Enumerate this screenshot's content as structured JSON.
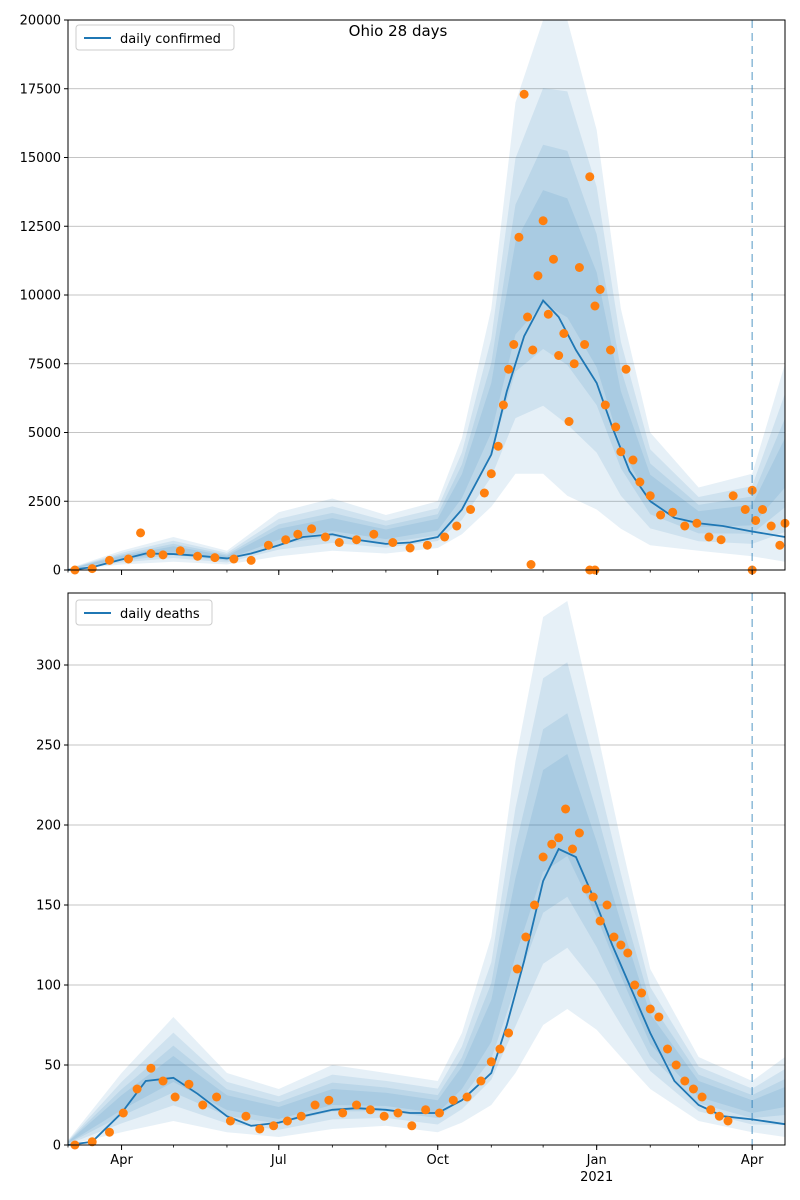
{
  "title": "Ohio 28 days",
  "colors": {
    "line": "#1f77b4",
    "dots": "#ff7f0e",
    "band": "#1f77b4",
    "grid": "#b0b0b0",
    "axis": "#000000",
    "forecast_line": "#1f77b4"
  },
  "x_axis": {
    "start": "2020-03-01",
    "end": "2021-04-20",
    "forecast_date": "2021-04-01",
    "ticks": [
      {
        "date": "2020-04-01",
        "label": "Apr"
      },
      {
        "date": "2020-07-01",
        "label": "Jul"
      },
      {
        "date": "2020-10-01",
        "label": "Oct"
      },
      {
        "date": "2021-01-01",
        "label": "Jan"
      },
      {
        "date": "2021-04-01",
        "label": "Apr"
      }
    ],
    "year_label": "2021"
  },
  "chart_data": [
    {
      "type": "line",
      "title": "Ohio 28 days",
      "ylim": [
        0,
        20000
      ],
      "yticks": [
        0,
        2500,
        5000,
        7500,
        10000,
        12500,
        15000,
        17500,
        20000
      ],
      "legend": "top-left",
      "series": [
        {
          "name": "daily confirmed",
          "kind": "line",
          "x": [
            "2020-03-01",
            "2020-03-15",
            "2020-04-01",
            "2020-04-15",
            "2020-05-01",
            "2020-05-15",
            "2020-06-01",
            "2020-06-15",
            "2020-07-01",
            "2020-07-15",
            "2020-08-01",
            "2020-08-15",
            "2020-09-01",
            "2020-09-15",
            "2020-10-01",
            "2020-10-15",
            "2020-11-01",
            "2020-11-10",
            "2020-11-20",
            "2020-12-01",
            "2020-12-10",
            "2020-12-20",
            "2021-01-01",
            "2021-01-10",
            "2021-01-20",
            "2021-02-01",
            "2021-02-15",
            "2021-03-01",
            "2021-03-15",
            "2021-04-01",
            "2021-04-20"
          ],
          "y": [
            0,
            100,
            380,
            600,
            580,
            520,
            420,
            600,
            900,
            1200,
            1300,
            1100,
            950,
            1000,
            1200,
            2200,
            4200,
            6500,
            8500,
            9800,
            9200,
            8000,
            6800,
            5200,
            3600,
            2500,
            1900,
            1700,
            1600,
            1400,
            1200
          ]
        },
        {
          "name": "",
          "kind": "band",
          "x": [
            "2020-03-01",
            "2020-04-01",
            "2020-05-01",
            "2020-06-01",
            "2020-07-01",
            "2020-08-01",
            "2020-09-01",
            "2020-10-01",
            "2020-10-15",
            "2020-11-01",
            "2020-11-15",
            "2020-12-01",
            "2020-12-15",
            "2021-01-01",
            "2021-01-15",
            "2021-02-01",
            "2021-03-01",
            "2021-04-01",
            "2021-04-20"
          ],
          "lower": [
            0,
            200,
            300,
            200,
            500,
            700,
            600,
            800,
            1300,
            2300,
            3500,
            3500,
            2700,
            2200,
            1500,
            900,
            700,
            500,
            300
          ],
          "upper": [
            50,
            700,
            1200,
            700,
            2100,
            2600,
            2000,
            2500,
            4800,
            9500,
            17000,
            20000,
            20000,
            16000,
            9500,
            5000,
            3000,
            3500,
            7500
          ]
        },
        {
          "name": "",
          "kind": "points",
          "x": [
            "2020-03-05",
            "2020-03-15",
            "2020-03-25",
            "2020-04-05",
            "2020-04-12",
            "2020-04-18",
            "2020-04-25",
            "2020-05-05",
            "2020-05-15",
            "2020-05-25",
            "2020-06-05",
            "2020-06-15",
            "2020-06-25",
            "2020-07-05",
            "2020-07-12",
            "2020-07-20",
            "2020-07-28",
            "2020-08-05",
            "2020-08-15",
            "2020-08-25",
            "2020-09-05",
            "2020-09-15",
            "2020-09-25",
            "2020-10-05",
            "2020-10-12",
            "2020-10-20",
            "2020-10-28",
            "2020-11-01",
            "2020-11-05",
            "2020-11-08",
            "2020-11-11",
            "2020-11-14",
            "2020-11-17",
            "2020-11-20",
            "2020-11-22",
            "2020-11-25",
            "2020-11-28",
            "2020-12-01",
            "2020-12-04",
            "2020-12-07",
            "2020-12-10",
            "2020-12-13",
            "2020-12-16",
            "2020-12-19",
            "2020-12-22",
            "2020-12-25",
            "2020-12-28",
            "2020-12-31",
            "2021-01-03",
            "2021-01-06",
            "2021-01-09",
            "2021-01-12",
            "2021-01-15",
            "2021-01-18",
            "2021-01-22",
            "2021-01-26",
            "2021-02-01",
            "2021-02-07",
            "2021-02-14",
            "2021-02-21",
            "2021-02-28",
            "2021-03-07",
            "2021-03-14",
            "2021-03-21",
            "2021-03-28",
            "2021-04-01",
            "2021-04-03",
            "2021-04-07",
            "2021-04-12",
            "2021-04-17",
            "2021-04-20",
            "2020-11-24",
            "2020-12-28",
            "2020-12-31",
            "2021-04-01"
          ],
          "y": [
            0,
            50,
            350,
            400,
            1350,
            600,
            550,
            700,
            500,
            450,
            400,
            350,
            900,
            1100,
            1300,
            1500,
            1200,
            1000,
            1100,
            1300,
            1000,
            800,
            900,
            1200,
            1600,
            2200,
            2800,
            3500,
            4500,
            6000,
            7300,
            8200,
            12100,
            17300,
            9200,
            8000,
            10700,
            12700,
            9300,
            11300,
            7800,
            8600,
            5400,
            7500,
            11000,
            8200,
            14300,
            9600,
            10200,
            6000,
            8000,
            5200,
            4300,
            7300,
            4000,
            3200,
            2700,
            2000,
            2100,
            1600,
            1700,
            1200,
            1100,
            2700,
            2200,
            2900,
            1800,
            2200,
            1600,
            900,
            1700,
            200,
            0,
            0,
            0
          ]
        }
      ]
    },
    {
      "type": "line",
      "ylim": [
        0,
        345
      ],
      "yticks": [
        0,
        50,
        100,
        150,
        200,
        250,
        300
      ],
      "legend": "top-left",
      "series": [
        {
          "name": "daily deaths",
          "kind": "line",
          "x": [
            "2020-03-01",
            "2020-03-15",
            "2020-04-01",
            "2020-04-15",
            "2020-05-01",
            "2020-05-15",
            "2020-06-01",
            "2020-06-15",
            "2020-07-01",
            "2020-07-15",
            "2020-08-01",
            "2020-08-15",
            "2020-09-01",
            "2020-09-15",
            "2020-10-01",
            "2020-10-15",
            "2020-11-01",
            "2020-11-10",
            "2020-11-20",
            "2020-12-01",
            "2020-12-10",
            "2020-12-20",
            "2021-01-01",
            "2021-01-10",
            "2021-01-20",
            "2021-02-01",
            "2021-02-15",
            "2021-03-01",
            "2021-03-15",
            "2021-04-01",
            "2021-04-20"
          ],
          "y": [
            0,
            2,
            20,
            40,
            42,
            32,
            18,
            12,
            14,
            18,
            22,
            23,
            22,
            20,
            20,
            28,
            45,
            75,
            115,
            165,
            185,
            180,
            150,
            125,
            100,
            70,
            40,
            25,
            18,
            16,
            13
          ]
        },
        {
          "name": "",
          "kind": "band",
          "x": [
            "2020-03-01",
            "2020-04-01",
            "2020-05-01",
            "2020-06-01",
            "2020-07-01",
            "2020-08-01",
            "2020-09-01",
            "2020-10-01",
            "2020-10-15",
            "2020-11-01",
            "2020-11-15",
            "2020-12-01",
            "2020-12-15",
            "2021-01-01",
            "2021-01-15",
            "2021-02-01",
            "2021-03-01",
            "2021-04-01",
            "2021-04-20"
          ],
          "lower": [
            0,
            8,
            15,
            8,
            5,
            10,
            12,
            8,
            14,
            25,
            45,
            75,
            85,
            72,
            55,
            35,
            15,
            8,
            5
          ],
          "upper": [
            3,
            45,
            80,
            45,
            35,
            50,
            45,
            40,
            70,
            130,
            240,
            330,
            340,
            260,
            190,
            110,
            55,
            40,
            55
          ]
        },
        {
          "name": "",
          "kind": "points",
          "x": [
            "2020-03-05",
            "2020-03-15",
            "2020-03-25",
            "2020-04-02",
            "2020-04-10",
            "2020-04-18",
            "2020-04-25",
            "2020-05-02",
            "2020-05-10",
            "2020-05-18",
            "2020-05-26",
            "2020-06-03",
            "2020-06-12",
            "2020-06-20",
            "2020-06-28",
            "2020-07-06",
            "2020-07-14",
            "2020-07-22",
            "2020-07-30",
            "2020-08-07",
            "2020-08-15",
            "2020-08-23",
            "2020-08-31",
            "2020-09-08",
            "2020-09-16",
            "2020-09-24",
            "2020-10-02",
            "2020-10-10",
            "2020-10-18",
            "2020-10-26",
            "2020-11-01",
            "2020-11-06",
            "2020-11-11",
            "2020-11-16",
            "2020-11-21",
            "2020-11-26",
            "2020-12-01",
            "2020-12-06",
            "2020-12-10",
            "2020-12-14",
            "2020-12-18",
            "2020-12-22",
            "2020-12-26",
            "2020-12-30",
            "2021-01-03",
            "2021-01-07",
            "2021-01-11",
            "2021-01-15",
            "2021-01-19",
            "2021-01-23",
            "2021-01-27",
            "2021-02-01",
            "2021-02-06",
            "2021-02-11",
            "2021-02-16",
            "2021-02-21",
            "2021-02-26",
            "2021-03-03",
            "2021-03-08",
            "2021-03-13",
            "2021-03-18"
          ],
          "y": [
            0,
            2,
            8,
            20,
            35,
            48,
            40,
            30,
            38,
            25,
            30,
            15,
            18,
            10,
            12,
            15,
            18,
            25,
            28,
            20,
            25,
            22,
            18,
            20,
            12,
            22,
            20,
            28,
            30,
            40,
            52,
            60,
            70,
            110,
            130,
            150,
            180,
            188,
            192,
            210,
            185,
            195,
            160,
            155,
            140,
            150,
            130,
            125,
            120,
            100,
            95,
            85,
            80,
            60,
            50,
            40,
            35,
            30,
            22,
            18,
            15
          ]
        }
      ]
    }
  ]
}
